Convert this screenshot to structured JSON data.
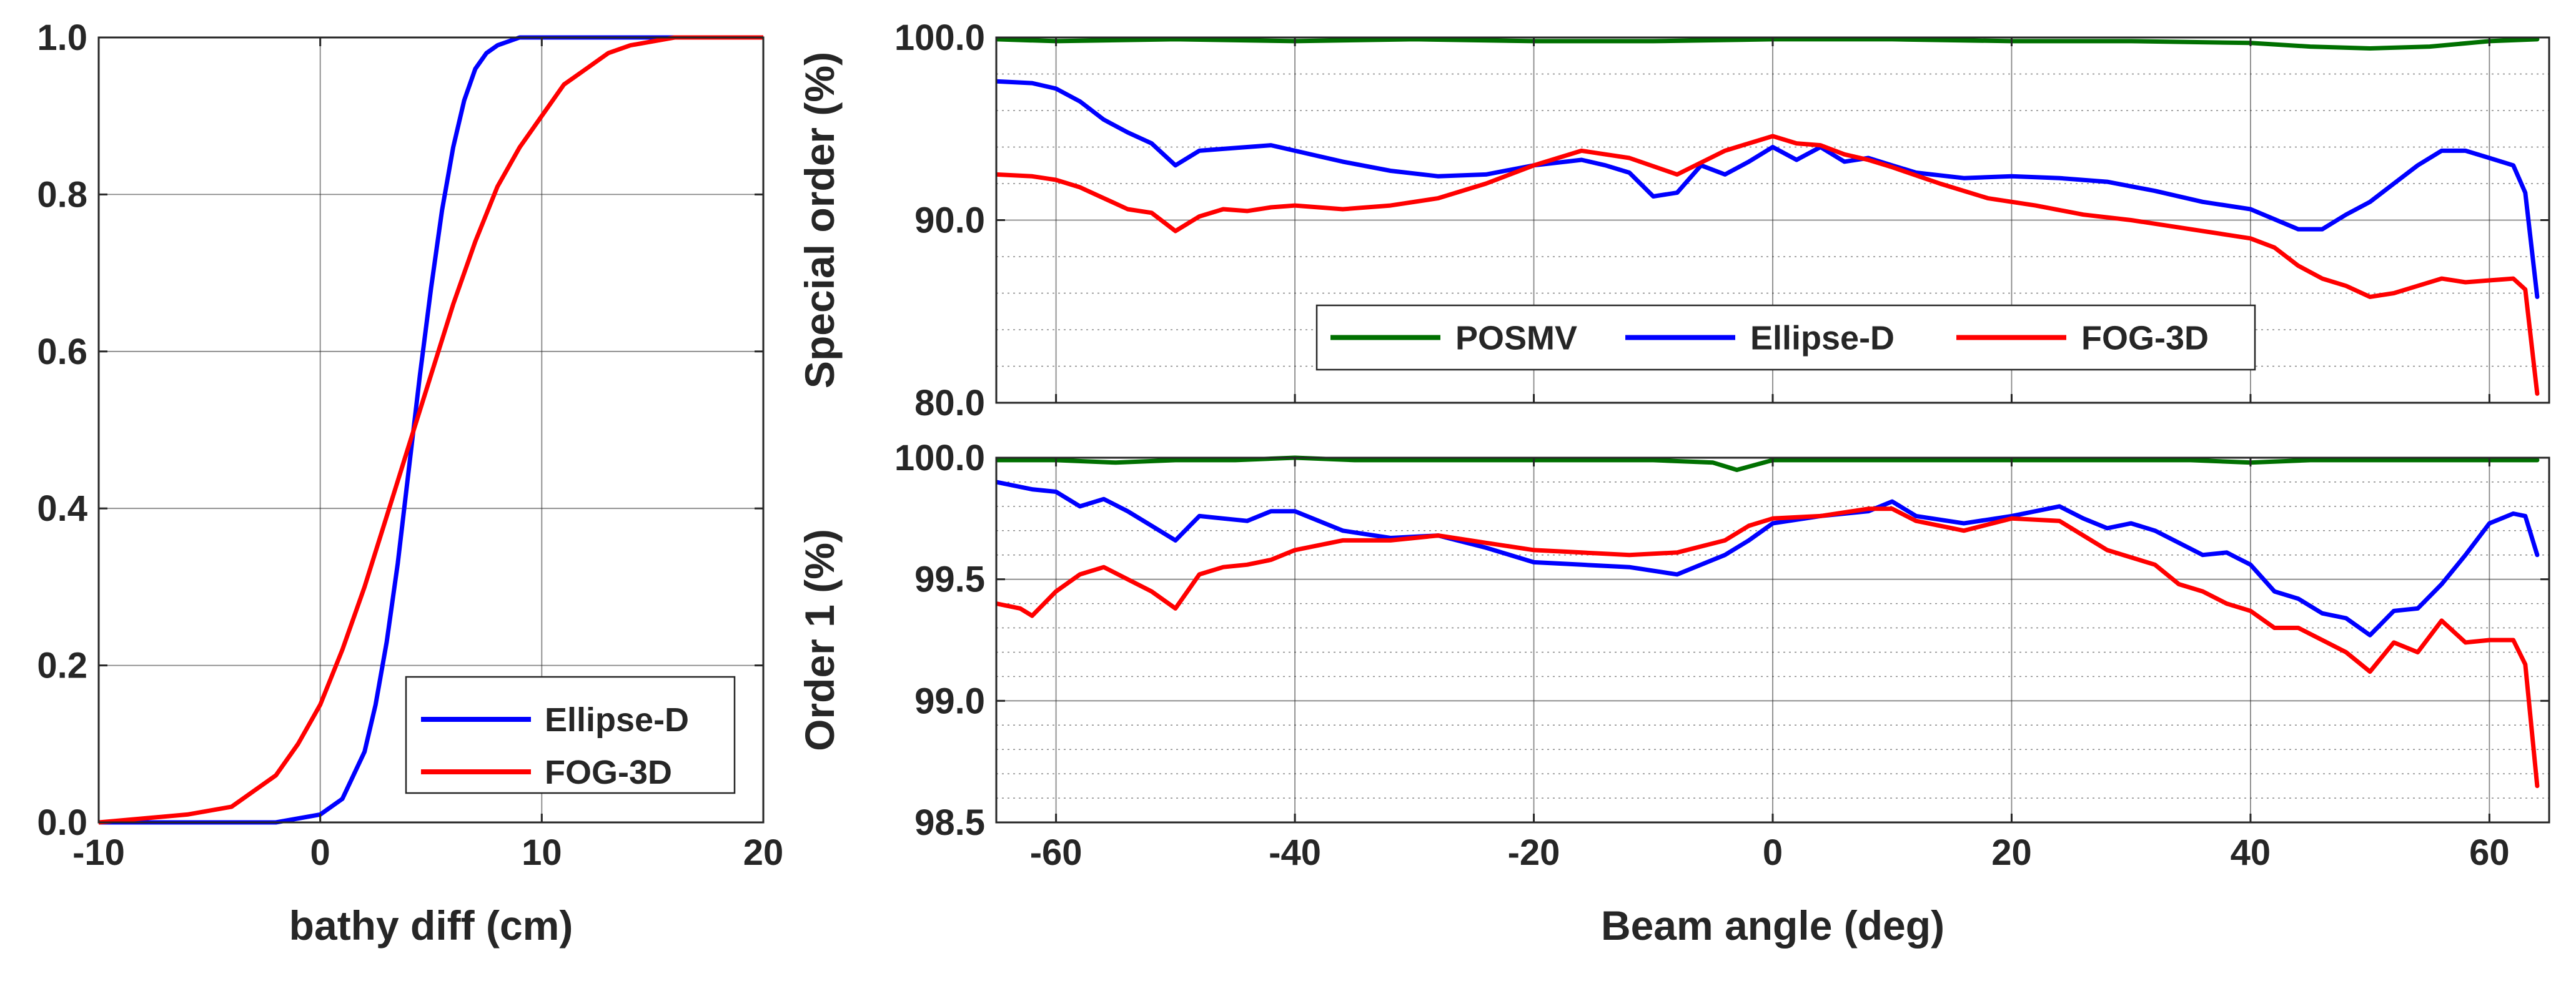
{
  "colors": {
    "blue": "#0000ff",
    "red": "#ff0000",
    "green": "#007000",
    "grid": "#262626",
    "text": "#262626"
  },
  "chart_data": [
    {
      "id": "cdf",
      "type": "line",
      "title": "",
      "xlabel": "bathy diff (cm)",
      "ylabel": "",
      "xlim": [
        -10,
        20
      ],
      "ylim": [
        0,
        1
      ],
      "xticks": [
        -10,
        0,
        10,
        20
      ],
      "xtick_labels": [
        "-10",
        "0",
        "10",
        "20"
      ],
      "yticks": [
        0,
        0.2,
        0.4,
        0.6,
        0.8,
        1.0
      ],
      "ytick_labels": [
        "0.0",
        "0.2",
        "0.4",
        "0.6",
        "0.8",
        "1.0"
      ],
      "grid": true,
      "legend": "bottom-right",
      "legend_labels": [
        "Ellipse-D",
        "FOG-3D"
      ],
      "series": [
        {
          "name": "Ellipse-D",
          "color": "#0000ff",
          "x": [
            -10,
            -2,
            0,
            1,
            2,
            2.5,
            3,
            3.5,
            4,
            4.5,
            5,
            5.5,
            6,
            6.5,
            7,
            7.5,
            8,
            9,
            10,
            12,
            20
          ],
          "y": [
            0.0,
            0.0,
            0.01,
            0.03,
            0.09,
            0.15,
            0.23,
            0.33,
            0.45,
            0.57,
            0.68,
            0.78,
            0.86,
            0.92,
            0.96,
            0.98,
            0.99,
            1.0,
            1.0,
            1.0,
            1.0
          ]
        },
        {
          "name": "FOG-3D",
          "color": "#ff0000",
          "x": [
            -10,
            -6,
            -4,
            -2,
            -1,
            0,
            1,
            2,
            3,
            4,
            5,
            6,
            7,
            8,
            9,
            10,
            11,
            12,
            13,
            14,
            15,
            16,
            18,
            20
          ],
          "y": [
            0.0,
            0.01,
            0.02,
            0.06,
            0.1,
            0.15,
            0.22,
            0.3,
            0.39,
            0.48,
            0.57,
            0.66,
            0.74,
            0.81,
            0.86,
            0.9,
            0.94,
            0.96,
            0.98,
            0.99,
            0.995,
            1.0,
            1.0,
            1.0
          ]
        }
      ]
    },
    {
      "id": "special",
      "type": "line",
      "title": "",
      "xlabel": "",
      "ylabel": "Special order (%)",
      "xlim": [
        -65,
        65
      ],
      "ylim": [
        80,
        100
      ],
      "xticks": [
        -60,
        -40,
        -20,
        0,
        20,
        40,
        60
      ],
      "xtick_labels": [],
      "yticks": [
        80,
        90,
        100
      ],
      "ytick_labels": [
        "80.0",
        "90.0",
        "100.0"
      ],
      "minor_grid_step": 2,
      "grid": true,
      "legend": "bottom-center",
      "legend_labels": [
        "POSMV",
        "Ellipse-D",
        "FOG-3D"
      ],
      "series": [
        {
          "name": "POSMV",
          "color": "#007000",
          "x": [
            -65,
            -60,
            -50,
            -40,
            -30,
            -20,
            -10,
            0,
            10,
            20,
            30,
            40,
            45,
            50,
            55,
            60,
            64
          ],
          "y": [
            99.9,
            99.8,
            99.9,
            99.8,
            99.9,
            99.8,
            99.8,
            99.9,
            99.9,
            99.8,
            99.8,
            99.7,
            99.5,
            99.4,
            99.5,
            99.8,
            99.9
          ]
        },
        {
          "name": "Ellipse-D",
          "color": "#0000ff",
          "x": [
            -65,
            -62,
            -60,
            -58,
            -56,
            -54,
            -52,
            -50,
            -48,
            -46,
            -44,
            -42,
            -40,
            -36,
            -32,
            -28,
            -24,
            -20,
            -16,
            -14,
            -12,
            -10,
            -8,
            -6,
            -4,
            -2,
            0,
            2,
            4,
            6,
            8,
            10,
            12,
            16,
            20,
            24,
            28,
            32,
            36,
            40,
            44,
            46,
            48,
            50,
            52,
            54,
            56,
            58,
            60,
            62,
            63,
            64
          ],
          "y": [
            97.6,
            97.5,
            97.2,
            96.5,
            95.5,
            94.8,
            94.2,
            93.0,
            93.8,
            93.9,
            94.0,
            94.1,
            93.8,
            93.2,
            92.7,
            92.4,
            92.5,
            93.0,
            93.3,
            93.0,
            92.6,
            91.3,
            91.5,
            93.0,
            92.5,
            93.2,
            94.0,
            93.3,
            94.0,
            93.2,
            93.4,
            93.0,
            92.6,
            92.3,
            92.4,
            92.3,
            92.1,
            91.6,
            91.0,
            90.6,
            89.5,
            89.5,
            90.3,
            91.0,
            92.0,
            93.0,
            93.8,
            93.8,
            93.4,
            93.0,
            91.5,
            85.8
          ]
        },
        {
          "name": "FOG-3D",
          "color": "#ff0000",
          "x": [
            -65,
            -62,
            -60,
            -58,
            -56,
            -54,
            -52,
            -50,
            -48,
            -46,
            -44,
            -42,
            -40,
            -36,
            -32,
            -28,
            -24,
            -20,
            -16,
            -12,
            -8,
            -4,
            -2,
            0,
            2,
            4,
            6,
            8,
            10,
            14,
            18,
            22,
            26,
            30,
            34,
            38,
            40,
            42,
            44,
            46,
            48,
            50,
            52,
            54,
            56,
            58,
            60,
            62,
            63,
            64
          ],
          "y": [
            92.5,
            92.4,
            92.2,
            91.8,
            91.2,
            90.6,
            90.4,
            89.4,
            90.2,
            90.6,
            90.5,
            90.7,
            90.8,
            90.6,
            90.8,
            91.2,
            92.0,
            93.0,
            93.8,
            93.4,
            92.5,
            93.8,
            94.2,
            94.6,
            94.2,
            94.1,
            93.6,
            93.3,
            92.9,
            92.0,
            91.2,
            90.8,
            90.3,
            90.0,
            89.6,
            89.2,
            89.0,
            88.5,
            87.5,
            86.8,
            86.4,
            85.8,
            86.0,
            86.4,
            86.8,
            86.6,
            86.7,
            86.8,
            86.2,
            80.5
          ]
        }
      ]
    },
    {
      "id": "order1",
      "type": "line",
      "title": "",
      "xlabel": "Beam angle (deg)",
      "ylabel": "Order 1 (%)",
      "xlim": [
        -65,
        65
      ],
      "ylim": [
        98.5,
        100
      ],
      "xticks": [
        -60,
        -40,
        -20,
        0,
        20,
        40,
        60
      ],
      "xtick_labels": [
        "-60",
        "-40",
        "-20",
        "0",
        "20",
        "40",
        "60"
      ],
      "yticks": [
        98.5,
        99.0,
        99.5,
        100.0
      ],
      "ytick_labels": [
        "98.5",
        "99.0",
        "99.5",
        "100.0"
      ],
      "minor_grid_step": 0.1,
      "grid": true,
      "legend": "none",
      "legend_labels": [],
      "series": [
        {
          "name": "POSMV",
          "color": "#007000",
          "x": [
            -65,
            -60,
            -55,
            -50,
            -45,
            -40,
            -35,
            -30,
            -25,
            -20,
            -15,
            -10,
            -5,
            -3,
            0,
            5,
            10,
            15,
            20,
            25,
            30,
            35,
            40,
            45,
            50,
            55,
            60,
            64
          ],
          "y": [
            99.99,
            99.99,
            99.98,
            99.99,
            99.99,
            100.0,
            99.99,
            99.99,
            99.99,
            99.99,
            99.99,
            99.99,
            99.98,
            99.95,
            99.99,
            99.99,
            99.99,
            99.99,
            99.99,
            99.99,
            99.99,
            99.99,
            99.98,
            99.99,
            99.99,
            99.99,
            99.99,
            99.99
          ]
        },
        {
          "name": "Ellipse-D",
          "color": "#0000ff",
          "x": [
            -65,
            -62,
            -60,
            -58,
            -56,
            -54,
            -52,
            -50,
            -48,
            -46,
            -44,
            -42,
            -40,
            -36,
            -32,
            -28,
            -24,
            -20,
            -16,
            -12,
            -8,
            -6,
            -4,
            -2,
            0,
            4,
            8,
            10,
            12,
            16,
            20,
            24,
            26,
            28,
            30,
            32,
            34,
            36,
            38,
            40,
            42,
            44,
            46,
            48,
            50,
            52,
            54,
            56,
            58,
            60,
            62,
            63,
            64
          ],
          "y": [
            99.9,
            99.87,
            99.86,
            99.8,
            99.83,
            99.78,
            99.72,
            99.66,
            99.76,
            99.75,
            99.74,
            99.78,
            99.78,
            99.7,
            99.67,
            99.68,
            99.63,
            99.57,
            99.56,
            99.55,
            99.52,
            99.56,
            99.6,
            99.66,
            99.73,
            99.76,
            99.78,
            99.82,
            99.76,
            99.73,
            99.76,
            99.8,
            99.75,
            99.71,
            99.73,
            99.7,
            99.65,
            99.6,
            99.61,
            99.56,
            99.45,
            99.42,
            99.36,
            99.34,
            99.27,
            99.37,
            99.38,
            99.48,
            99.6,
            99.73,
            99.77,
            99.76,
            99.6
          ]
        },
        {
          "name": "FOG-3D",
          "color": "#ff0000",
          "x": [
            -65,
            -63,
            -62,
            -60,
            -58,
            -56,
            -54,
            -52,
            -50,
            -48,
            -46,
            -44,
            -42,
            -40,
            -36,
            -32,
            -28,
            -24,
            -20,
            -16,
            -12,
            -8,
            -4,
            -2,
            0,
            4,
            8,
            10,
            12,
            16,
            20,
            24,
            28,
            32,
            34,
            36,
            38,
            40,
            42,
            44,
            46,
            48,
            50,
            52,
            54,
            56,
            58,
            60,
            62,
            63,
            64
          ],
          "y": [
            99.4,
            99.38,
            99.35,
            99.45,
            99.52,
            99.55,
            99.5,
            99.45,
            99.38,
            99.52,
            99.55,
            99.56,
            99.58,
            99.62,
            99.66,
            99.66,
            99.68,
            99.65,
            99.62,
            99.61,
            99.6,
            99.61,
            99.66,
            99.72,
            99.75,
            99.76,
            99.79,
            99.79,
            99.74,
            99.7,
            99.75,
            99.74,
            99.62,
            99.56,
            99.48,
            99.45,
            99.4,
            99.37,
            99.3,
            99.3,
            99.25,
            99.2,
            99.12,
            99.24,
            99.2,
            99.33,
            99.24,
            99.25,
            99.25,
            99.15,
            98.65
          ]
        }
      ]
    }
  ]
}
